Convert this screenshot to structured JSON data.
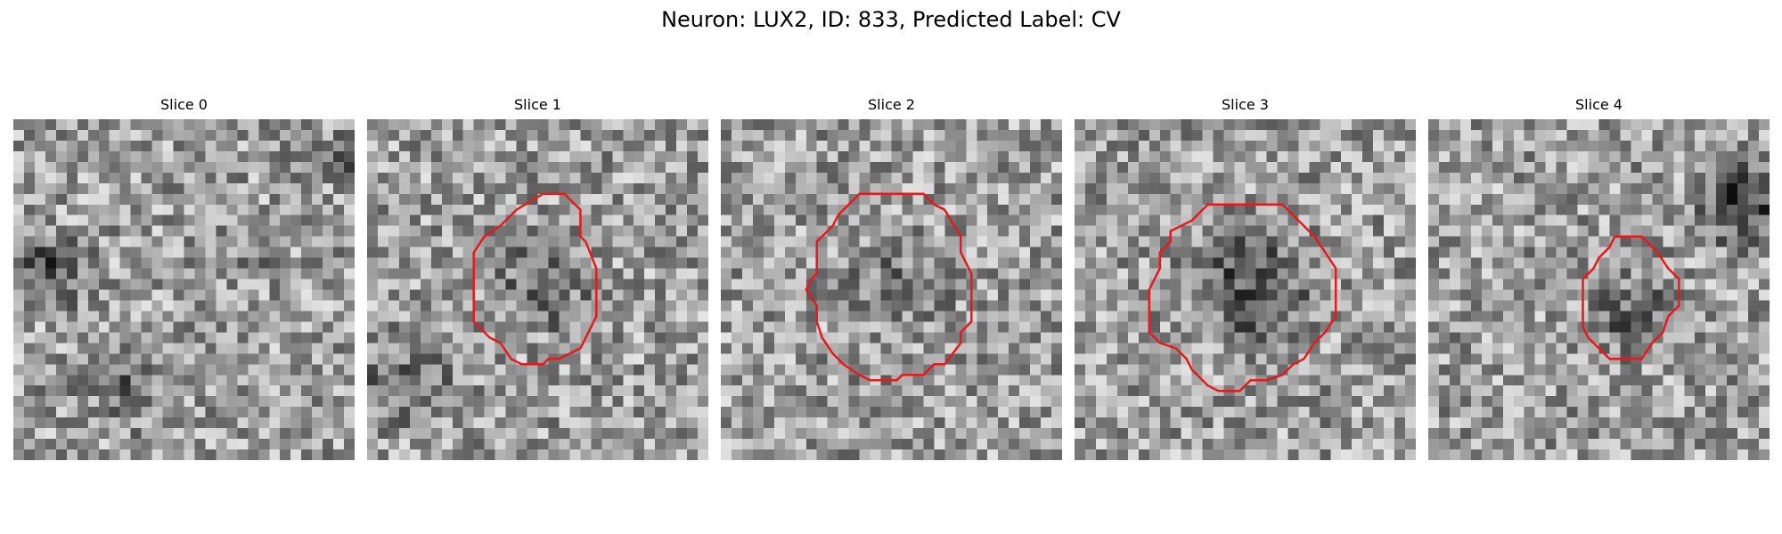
{
  "figure": {
    "title": "Neuron: LUX2, ID: 833, Predicted Label: CV"
  },
  "grid_size": 32,
  "contour_color": "#e41a1c",
  "slices": [
    {
      "title": "Slice 0",
      "seed": 11,
      "contour": []
    },
    {
      "title": "Slice 1",
      "seed": 23,
      "contour": [
        [
          16.5,
          7
        ],
        [
          18.5,
          7
        ],
        [
          20,
          8.5
        ],
        [
          20,
          11
        ],
        [
          20.5,
          11.5
        ],
        [
          21.5,
          14
        ],
        [
          21.5,
          18.5
        ],
        [
          20.5,
          20.5
        ],
        [
          20,
          21.5
        ],
        [
          18,
          22.5
        ],
        [
          17,
          22.5
        ],
        [
          16.5,
          23
        ],
        [
          14.5,
          23
        ],
        [
          13.5,
          22.5
        ],
        [
          12.5,
          21
        ],
        [
          11.5,
          20.5
        ],
        [
          10,
          19
        ],
        [
          10,
          12.5
        ],
        [
          11,
          11
        ],
        [
          12.5,
          10
        ],
        [
          14,
          8.5
        ]
      ]
    },
    {
      "title": "Slice 2",
      "seed": 37,
      "contour": [
        [
          13,
          7
        ],
        [
          19,
          7
        ],
        [
          20,
          8
        ],
        [
          21,
          8.5
        ],
        [
          22.5,
          11
        ],
        [
          22.5,
          12.5
        ],
        [
          23.5,
          14.5
        ],
        [
          23.5,
          19
        ],
        [
          22.5,
          20
        ],
        [
          22.5,
          21
        ],
        [
          21,
          23
        ],
        [
          20,
          23
        ],
        [
          19,
          24
        ],
        [
          17,
          24
        ],
        [
          16.5,
          24.5
        ],
        [
          14,
          24.5
        ],
        [
          13,
          24
        ],
        [
          11.5,
          23
        ],
        [
          10.5,
          22
        ],
        [
          9.5,
          20.5
        ],
        [
          9,
          19
        ],
        [
          9,
          17.5
        ],
        [
          8,
          16
        ],
        [
          8.5,
          15
        ],
        [
          9,
          14.5
        ],
        [
          9,
          11.5
        ],
        [
          10.5,
          10
        ],
        [
          11,
          9
        ]
      ]
    },
    {
      "title": "Slice 3",
      "seed": 49,
      "contour": [
        [
          12.5,
          8
        ],
        [
          19.5,
          8
        ],
        [
          21,
          9.5
        ],
        [
          22.5,
          11
        ],
        [
          23.5,
          12.5
        ],
        [
          24.5,
          14
        ],
        [
          24.5,
          18.5
        ],
        [
          23.5,
          20
        ],
        [
          22.5,
          21
        ],
        [
          21.5,
          22.5
        ],
        [
          20.5,
          23
        ],
        [
          19.5,
          24
        ],
        [
          18,
          24.5
        ],
        [
          16.5,
          24.5
        ],
        [
          15.5,
          25.5
        ],
        [
          13.5,
          25.5
        ],
        [
          12.5,
          25
        ],
        [
          11,
          23.5
        ],
        [
          10.5,
          22.5
        ],
        [
          9.5,
          21.5
        ],
        [
          8,
          21
        ],
        [
          7,
          20
        ],
        [
          7,
          16
        ],
        [
          7.5,
          15
        ],
        [
          8,
          14
        ],
        [
          8,
          12.5
        ],
        [
          9,
          11.5
        ],
        [
          9,
          10.5
        ],
        [
          10,
          10
        ],
        [
          11,
          9.5
        ]
      ]
    },
    {
      "title": "Slice 4",
      "seed": 61,
      "contour": [
        [
          17.5,
          11
        ],
        [
          20,
          11
        ],
        [
          21.5,
          12.5
        ],
        [
          22.5,
          14
        ],
        [
          23.5,
          15
        ],
        [
          23.5,
          17.5
        ],
        [
          22.5,
          18.5
        ],
        [
          22,
          20
        ],
        [
          21,
          21
        ],
        [
          20,
          22.5
        ],
        [
          17,
          22.5
        ],
        [
          16,
          21.5
        ],
        [
          15,
          20.5
        ],
        [
          14.5,
          19.5
        ],
        [
          14.5,
          15
        ],
        [
          15.5,
          14
        ],
        [
          16,
          13
        ],
        [
          17,
          12
        ]
      ]
    }
  ]
}
